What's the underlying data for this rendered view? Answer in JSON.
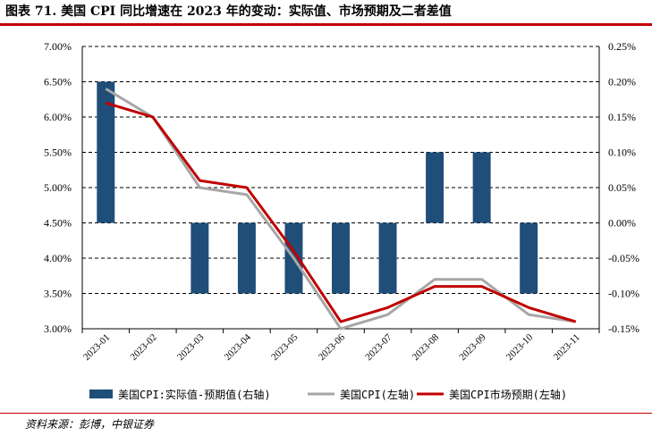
{
  "header": {
    "title": "图表 71. 美国 CPI 同比增速在 2023 年的变动：实际值、市场预期及二者差值"
  },
  "footer": {
    "source": "资料来源：彭博，中银证券"
  },
  "colors": {
    "title_rule": "#c00000",
    "bars": "#1f4e79",
    "actual_line": "#a6a6a6",
    "expected_line": "#c00000",
    "grid": "#000000"
  },
  "chart_data": {
    "type": "bar",
    "categories": [
      "2023-01",
      "2023-02",
      "2023-03",
      "2023-04",
      "2023-05",
      "2023-06",
      "2023-07",
      "2023-08",
      "2023-09",
      "2023-10",
      "2023-11"
    ],
    "left_axis": {
      "ylim": [
        3.0,
        7.0
      ],
      "ticks": [
        "3.00%",
        "3.50%",
        "4.00%",
        "4.50%",
        "5.00%",
        "5.50%",
        "6.00%",
        "6.50%",
        "7.00%"
      ]
    },
    "right_axis": {
      "ylim": [
        -0.15,
        0.25
      ],
      "ticks": [
        "-0.15%",
        "-0.10%",
        "-0.05%",
        "0.00%",
        "0.05%",
        "0.10%",
        "0.15%",
        "0.20%",
        "0.25%"
      ]
    },
    "grid": "horizontal dashed",
    "legend_position": "bottom",
    "series": [
      {
        "name": "美国CPI:实际值-预期值(右轴)",
        "type": "bar",
        "axis": "right",
        "values": [
          0.2,
          null,
          -0.1,
          -0.1,
          -0.1,
          -0.1,
          -0.1,
          0.1,
          0.1,
          -0.1,
          null
        ]
      },
      {
        "name": "美国CPI(左轴)",
        "type": "line",
        "axis": "left",
        "values": [
          6.4,
          6.0,
          5.0,
          4.9,
          4.0,
          3.0,
          3.2,
          3.7,
          3.7,
          3.2,
          3.1
        ]
      },
      {
        "name": "美国CPI市场预期(左轴)",
        "type": "line",
        "axis": "left",
        "values": [
          6.2,
          6.0,
          5.1,
          5.0,
          4.1,
          3.1,
          3.3,
          3.6,
          3.6,
          3.3,
          3.1
        ]
      }
    ]
  }
}
